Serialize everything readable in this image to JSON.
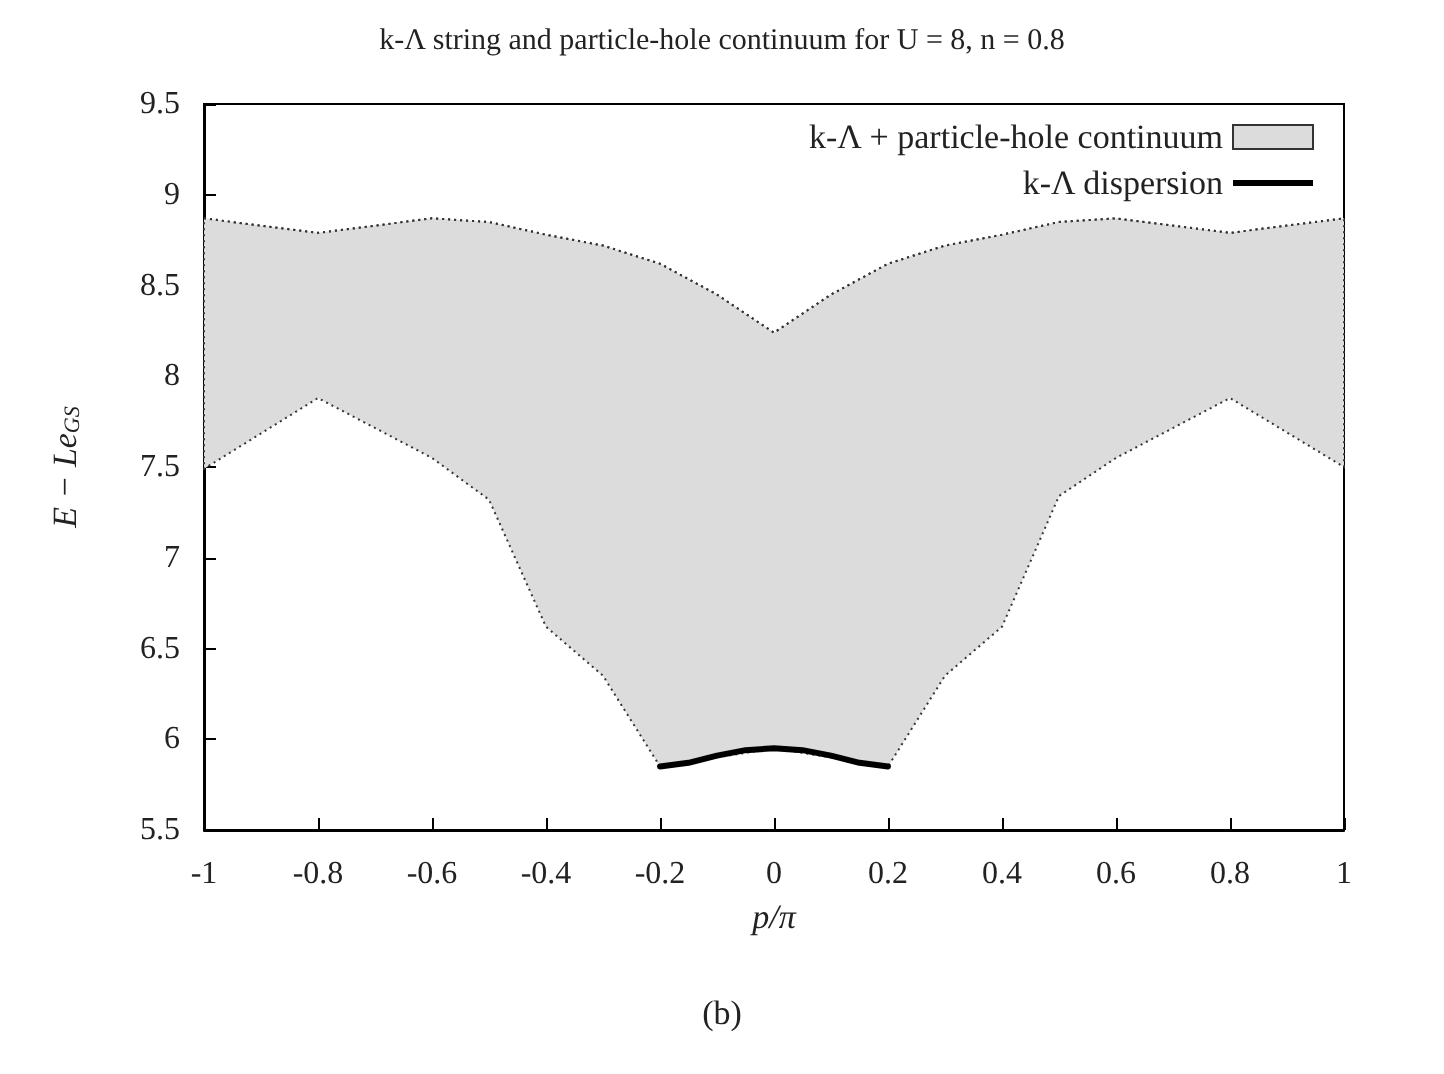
{
  "chart_data": {
    "type": "line",
    "title": "k-Λ string and particle-hole continuum for U = 8, n = 0.8",
    "xlabel": "p/π",
    "ylabel": "E − Le$_{GS}$",
    "annotations": [
      "(b)"
    ],
    "xlim": [
      -1,
      1
    ],
    "xticks": [
      -1,
      -0.8,
      -0.6,
      -0.4,
      -0.2,
      0,
      0.2,
      0.4,
      0.6,
      0.8,
      1
    ],
    "ylim": [
      5.5,
      9.5
    ],
    "yticks": [
      5.5,
      6,
      6.5,
      7,
      7.5,
      8,
      8.5,
      9,
      9.5
    ],
    "legend": "top right",
    "grid": false,
    "series": [
      {
        "name": "k-Λ + particle-hole continuum",
        "color": "#333333",
        "line_style": "dotted",
        "x": [
          -1,
          -0.8,
          -0.6,
          -0.5,
          -0.4,
          -0.3,
          -0.2,
          -0.1,
          0,
          0.1,
          0.2,
          0.3,
          0.4,
          0.5,
          0.6,
          0.8,
          1
        ],
        "values": [
          8.87,
          8.79,
          8.87,
          8.85,
          8.78,
          8.72,
          8.62,
          8.45,
          8.24,
          8.45,
          8.62,
          8.72,
          8.78,
          8.85,
          8.87,
          8.79,
          8.87
        ],
        "lower": [
          7.49,
          7.88,
          7.55,
          7.32,
          6.62,
          6.35,
          5.85,
          5.9,
          5.95,
          5.9,
          5.85,
          6.35,
          6.62,
          7.34,
          7.55,
          7.88,
          7.5
        ],
        "upper": [
          8.87,
          8.79,
          8.87,
          8.85,
          8.78,
          8.72,
          8.62,
          8.45,
          8.24,
          8.45,
          8.62,
          8.72,
          8.78,
          8.85,
          8.87,
          8.79,
          8.87
        ]
      },
      {
        "name": "k-Λ dispersion",
        "type": "line",
        "color": "#000000",
        "x": [
          -0.2,
          -0.15,
          -0.1,
          -0.05,
          0,
          0.05,
          0.1,
          0.15,
          0.2
        ],
        "values": [
          5.85,
          5.87,
          5.91,
          5.94,
          5.95,
          5.94,
          5.91,
          5.87,
          5.85
        ]
      }
    ]
  }
}
